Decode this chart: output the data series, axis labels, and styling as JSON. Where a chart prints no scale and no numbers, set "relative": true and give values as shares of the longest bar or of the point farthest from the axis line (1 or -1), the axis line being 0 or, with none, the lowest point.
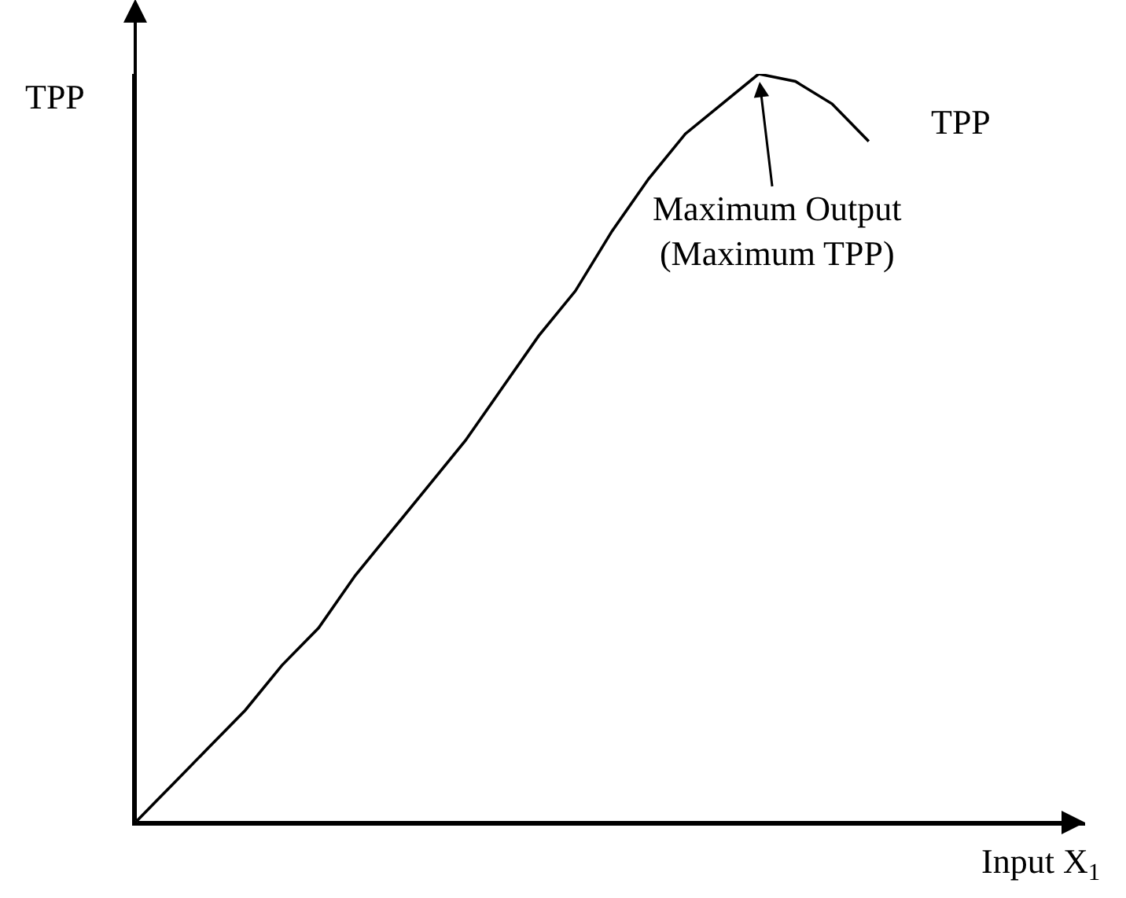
{
  "chart_data": {
    "type": "line",
    "relative": true,
    "ylabel": "TPP",
    "xlabel": "Input X$_{1}$",
    "legend": false,
    "marker": "none",
    "line_style": "solid",
    "categories": [
      null,
      null,
      null,
      null,
      null,
      null,
      null,
      null,
      null,
      null,
      null,
      null,
      null,
      null,
      null,
      null,
      null,
      null,
      null,
      null,
      null,
      null,
      null,
      null,
      null,
      null
    ],
    "series": [
      {
        "name": "TPP",
        "color": "#000000",
        "values": [
          0,
          0.05,
          0.1,
          0.15,
          0.21,
          0.26,
          0.33,
          0.39,
          0.45,
          0.51,
          0.58,
          0.65,
          0.71,
          0.79,
          0.86,
          0.92,
          0.96,
          1.0,
          0.99,
          0.96,
          0.91,
          null,
          null,
          null,
          null,
          null
        ]
      }
    ],
    "annotations": [
      "Maximum Output\n(Maximum TPP)"
    ]
  }
}
